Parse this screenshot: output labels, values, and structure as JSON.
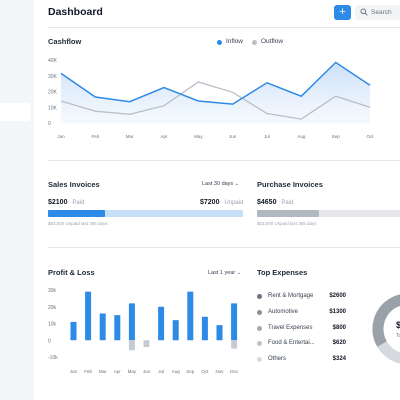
{
  "header": {
    "title": "Dashboard",
    "add_label": "+",
    "search_placeholder": "Search"
  },
  "colors": {
    "accent": "#2d8ae6",
    "inflow_fill": "#d8e8fa",
    "outflow": "#b9bfc6",
    "muted_bar": "#c5cbd3",
    "light_blue": "#c5dff7"
  },
  "cashflow": {
    "title": "Cashflow",
    "legend": [
      {
        "name": "Inflow",
        "color": "#2d8ae6"
      },
      {
        "name": "Outflow",
        "color": "#b9bfc6"
      }
    ]
  },
  "sales_invoices": {
    "title": "Sales Invoices",
    "period": "Last 30 days",
    "paid_amount": "$2100",
    "paid_label": "Paid",
    "unpaid_amount": "$7200",
    "unpaid_label": "Unpaid",
    "paid_fraction": 0.29,
    "note": "$53,000 Unpaid last 365 days"
  },
  "purchase_invoices": {
    "title": "Purchase Invoices",
    "paid_amount": "$4650",
    "paid_label": "Paid",
    "paid_fraction": 0.39,
    "note": "$53,000 Unpaid last 365 days"
  },
  "profit_loss": {
    "title": "Profit & Loss",
    "period": "Last 1 year"
  },
  "top_expenses": {
    "title": "Top Expenses",
    "items": [
      {
        "label": "Rent & Mortgage",
        "amount": "$2600",
        "color": "#6b7280"
      },
      {
        "label": "Automotive",
        "amount": "$1300",
        "color": "#8a9199"
      },
      {
        "label": "Travel Expenses",
        "amount": "$800",
        "color": "#a4aab1"
      },
      {
        "label": "Food & Entertai...",
        "amount": "$620",
        "color": "#bec3c9"
      },
      {
        "label": "Others",
        "amount": "$324",
        "color": "#d6dade"
      }
    ],
    "donut_label_partial": "$",
    "donut_sub_partial": "To"
  },
  "chart_data": [
    {
      "type": "area",
      "title": "Cashflow",
      "categories": [
        "Jan",
        "Feb",
        "Mar",
        "Apr",
        "May",
        "Jun",
        "Jul",
        "Aug",
        "Sep",
        "Oct"
      ],
      "yticks": [
        "40K",
        "30K",
        "20K",
        "10K",
        "0"
      ],
      "ylim": [
        0,
        40
      ],
      "series": [
        {
          "name": "Inflow",
          "values": [
            31.5,
            16.5,
            13.5,
            22.5,
            14,
            12,
            25.5,
            17,
            38.5,
            24
          ]
        },
        {
          "name": "Outflow",
          "values": [
            14,
            7.5,
            5.5,
            11,
            26,
            19.5,
            6,
            2.5,
            17,
            10
          ]
        }
      ],
      "grid": false,
      "legend": "top-right"
    },
    {
      "type": "bar",
      "title": "Profit & Loss",
      "categories": [
        "Jan",
        "Feb",
        "Mar",
        "Apr",
        "May",
        "Jun",
        "Jul",
        "Aug",
        "Sep",
        "Oct",
        "Nov",
        "Dec"
      ],
      "yticks": [
        "30k",
        "20k",
        "10k",
        "0",
        "-10k"
      ],
      "ylim": [
        -10,
        30
      ],
      "series": [
        {
          "name": "profit",
          "values": [
            11,
            29,
            16,
            15,
            22,
            0,
            20,
            12,
            29,
            14,
            9,
            22
          ]
        },
        {
          "name": "loss",
          "values": [
            0,
            0,
            0,
            0,
            -6,
            -4,
            0,
            0,
            0,
            0,
            0,
            -5
          ]
        }
      ],
      "grid": false
    }
  ]
}
